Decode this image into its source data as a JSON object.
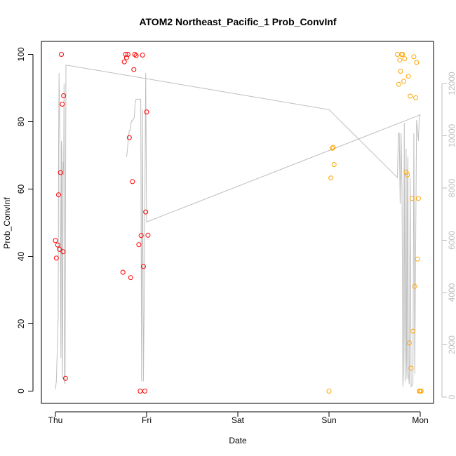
{
  "chart_data": {
    "type": "scatter",
    "title": "ATOM2 Northeast_Pacific_1 Prob_ConvInf",
    "xlabel": "Date",
    "ylabel": "Prob_ConvInf",
    "x_ticks": [
      "Thu",
      "Fri",
      "Sat",
      "Sun",
      "Mon"
    ],
    "ylim": [
      0,
      100
    ],
    "y_ticks": [
      0,
      20,
      40,
      60,
      80,
      100
    ],
    "y2lim": [
      0,
      13000
    ],
    "y2_ticks": [
      0,
      2000,
      4000,
      6000,
      8000,
      10000,
      12000
    ],
    "grid": false,
    "legend": "none",
    "colors": {
      "red_series": "#ff0000",
      "orange_series": "#ffa500",
      "line": "#bebebe"
    },
    "series": [
      {
        "color": "red",
        "marker": "open-circle",
        "points": [
          [
            0.0,
            44.7
          ],
          [
            0.01,
            39.5
          ],
          [
            0.025,
            43.4
          ],
          [
            0.035,
            58.3
          ],
          [
            0.045,
            42.1
          ],
          [
            0.055,
            64.9
          ],
          [
            0.065,
            100
          ],
          [
            0.075,
            85.2
          ],
          [
            0.085,
            41.4
          ],
          [
            0.09,
            87.7
          ],
          [
            0.11,
            3.8
          ],
          [
            0.74,
            35.3
          ],
          [
            0.755,
            97.8
          ],
          [
            0.77,
            100
          ],
          [
            0.78,
            99.0
          ],
          [
            0.795,
            100
          ],
          [
            0.81,
            75.3
          ],
          [
            0.825,
            33.7
          ],
          [
            0.845,
            62.2
          ],
          [
            0.86,
            95.5
          ],
          [
            0.87,
            100
          ],
          [
            0.885,
            99.6
          ],
          [
            0.915,
            43.5
          ],
          [
            0.93,
            0.0
          ],
          [
            0.94,
            46.2
          ],
          [
            0.955,
            99.8
          ],
          [
            0.965,
            37.0
          ],
          [
            0.98,
            0.0
          ],
          [
            0.99,
            53.2
          ],
          [
            1.0,
            82.9
          ],
          [
            1.015,
            46.3
          ]
        ]
      },
      {
        "color": "orange",
        "marker": "open-circle",
        "points": [
          [
            3.0,
            0.0
          ],
          [
            3.02,
            63.3
          ],
          [
            3.035,
            72.1
          ],
          [
            3.045,
            72.4
          ],
          [
            3.055,
            67.3
          ],
          [
            3.75,
            100
          ],
          [
            3.765,
            91.1
          ],
          [
            3.775,
            98.3
          ],
          [
            3.785,
            95.0
          ],
          [
            3.795,
            100
          ],
          [
            3.805,
            100
          ],
          [
            3.82,
            92.0
          ],
          [
            3.83,
            98.7
          ],
          [
            3.845,
            65.0
          ],
          [
            3.86,
            64.2
          ],
          [
            3.87,
            93.5
          ],
          [
            3.88,
            14.3
          ],
          [
            3.89,
            87.6
          ],
          [
            3.9,
            6.8
          ],
          [
            3.91,
            57.2
          ],
          [
            3.92,
            17.8
          ],
          [
            3.93,
            99.3
          ],
          [
            3.94,
            31.1
          ],
          [
            3.95,
            87.1
          ],
          [
            3.96,
            97.6
          ],
          [
            3.97,
            39.2
          ],
          [
            3.98,
            57.2
          ],
          [
            3.99,
            0.0
          ],
          [
            4.0,
            0.0
          ],
          [
            4.01,
            0.0
          ]
        ]
      }
    ],
    "line_series": {
      "color": "gray",
      "axis": "right",
      "points": [
        [
          0.0,
          300
        ],
        [
          0.01,
          600
        ],
        [
          0.03,
          3000
        ],
        [
          0.035,
          9500
        ],
        [
          0.04,
          12400
        ],
        [
          0.05,
          9500
        ],
        [
          0.055,
          5000
        ],
        [
          0.06,
          1500
        ],
        [
          0.065,
          9800
        ],
        [
          0.07,
          9500
        ],
        [
          0.075,
          700
        ],
        [
          0.08,
          2500
        ],
        [
          0.085,
          9000
        ],
        [
          0.09,
          8500
        ],
        [
          0.095,
          12000
        ],
        [
          0.1,
          600
        ],
        [
          0.105,
          500
        ],
        [
          0.115,
          12700
        ],
        [
          0.125,
          12700
        ],
        [
          3.0,
          11000
        ],
        [
          3.75,
          8400
        ],
        [
          3.76,
          10100
        ],
        [
          3.77,
          10100
        ],
        [
          3.78,
          7400
        ],
        [
          3.79,
          10100
        ],
        [
          3.8,
          8000
        ],
        [
          3.81,
          400
        ],
        [
          3.815,
          900
        ],
        [
          3.825,
          10500
        ],
        [
          3.83,
          2500
        ],
        [
          3.835,
          600
        ],
        [
          3.845,
          9500
        ],
        [
          3.85,
          1500
        ],
        [
          3.855,
          700
        ],
        [
          3.86,
          8200
        ],
        [
          3.865,
          9200
        ],
        [
          3.87,
          900
        ],
        [
          3.88,
          500
        ],
        [
          3.89,
          8400
        ],
        [
          3.9,
          400
        ],
        [
          3.92,
          500
        ],
        [
          3.93,
          10100
        ],
        [
          3.94,
          900
        ],
        [
          3.96,
          10600
        ],
        [
          3.98,
          9800
        ],
        [
          3.99,
          10700
        ],
        [
          4.0,
          10800
        ],
        [
          1.0,
          6700
        ],
        [
          0.99,
          12400
        ],
        [
          0.975,
          4200
        ],
        [
          0.965,
          600
        ],
        [
          0.955,
          11000
        ],
        [
          0.945,
          600
        ],
        [
          0.935,
          11400
        ],
        [
          0.925,
          11400
        ],
        [
          0.91,
          11400
        ],
        [
          0.895,
          11400
        ],
        [
          0.885,
          11400
        ],
        [
          0.875,
          11300
        ],
        [
          0.865,
          10700
        ],
        [
          0.85,
          10600
        ],
        [
          0.84,
          10600
        ],
        [
          0.83,
          10500
        ],
        [
          0.82,
          10200
        ],
        [
          0.81,
          10200
        ],
        [
          0.8,
          9900
        ],
        [
          0.79,
          9500
        ],
        [
          0.78,
          9200
        ]
      ]
    }
  }
}
